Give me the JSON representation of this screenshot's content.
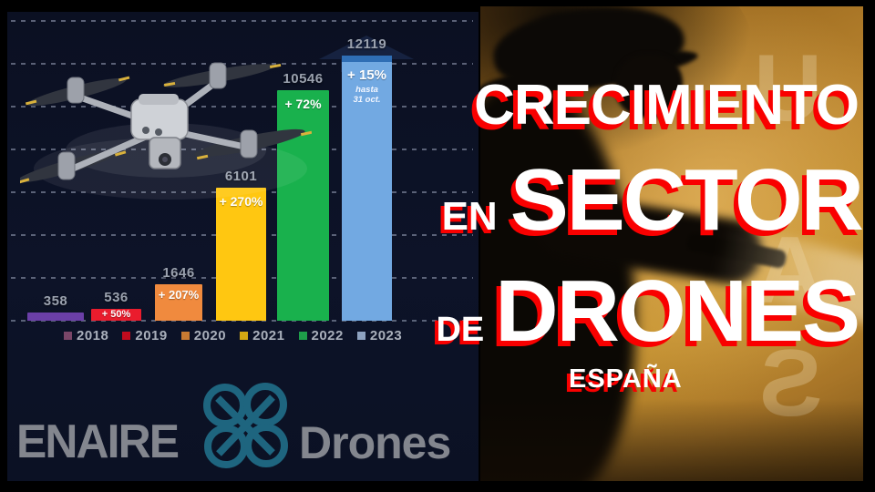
{
  "chart_data": {
    "type": "bar",
    "title": "",
    "xlabel": "",
    "ylabel": "",
    "categories": [
      "2018",
      "2019",
      "2020",
      "2021",
      "2022",
      "2023"
    ],
    "values": [
      358,
      536,
      1646,
      6101,
      10546,
      12119
    ],
    "value_labels": [
      "358",
      "536",
      "1646",
      "6101",
      "10546",
      "12119"
    ],
    "growth_labels": [
      "",
      "+ 50%",
      "+ 207%",
      "+ 270%",
      "+ 72%",
      "+ 15%"
    ],
    "last_bar_note_lines": [
      "hasta",
      "31 oct."
    ],
    "bar_colors": [
      "#6b3fa8",
      "#ea1c2d",
      "#f08a3e",
      "#ffc711",
      "#19b14d",
      "#72a9e2"
    ],
    "last_bar_cap_color": "#2f6eb5",
    "legend_colors": [
      "#7a4668",
      "#c00b1e",
      "#c87a32",
      "#d4a813",
      "#1e9e4a",
      "#8ea2c0"
    ],
    "ylim": [
      0,
      14000
    ],
    "gridlines": true,
    "legend_position": "bottom"
  },
  "logo": {
    "enaire": "ENAIRE",
    "drones": "Drones"
  },
  "headline": {
    "line1": "CRECIMIENTO",
    "line2_small": "EN",
    "line2_big": "SECTOR",
    "line3_small": "DE",
    "line3_big": "DRONES",
    "line4": "ESPAÑA"
  },
  "photo": {
    "watermark_letters": [
      "U",
      "A",
      "S"
    ]
  },
  "colors": {
    "headline_text": "#ffffff",
    "headline_shadow": "#f90000",
    "chart_background": "#0d1328",
    "photo_orange": "#bb8630",
    "logo_teal": "#1e657f",
    "logo_gray": "#83868e",
    "value_label_gray": "#9aa1ae"
  }
}
